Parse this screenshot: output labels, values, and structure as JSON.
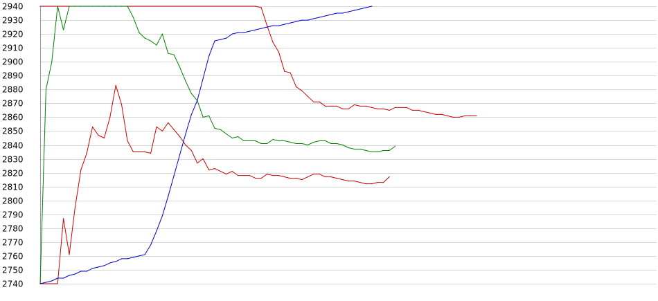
{
  "chart_data": {
    "type": "line",
    "title": "",
    "xlabel": "",
    "ylabel": "",
    "ylim": [
      2740,
      2940
    ],
    "grid": true,
    "yticks": [
      "2740",
      "2750",
      "2760",
      "2770",
      "2780",
      "2790",
      "2800",
      "2810",
      "2820",
      "2830",
      "2840",
      "2850",
      "2860",
      "2870",
      "2880",
      "2890",
      "2900",
      "2910",
      "2920",
      "2930",
      "2940"
    ],
    "x": [
      0,
      1,
      2,
      3,
      4,
      5,
      6,
      7,
      8,
      9,
      10,
      11,
      12,
      13,
      14,
      15,
      16,
      17,
      18,
      19,
      20,
      21,
      22,
      23,
      24,
      25,
      26,
      27,
      28,
      29,
      30,
      31,
      32,
      33,
      34,
      35,
      36,
      37,
      38,
      39,
      40,
      41,
      42,
      43,
      44,
      45,
      46,
      47,
      48,
      49,
      50,
      51,
      52,
      53,
      54,
      55,
      56,
      57,
      58,
      59,
      60,
      61,
      62,
      63,
      64,
      65,
      66,
      67,
      68,
      69,
      70,
      71,
      72,
      73,
      74,
      75,
      76,
      77,
      78,
      79,
      80,
      81,
      82,
      83,
      84,
      85,
      86,
      87,
      88,
      89,
      90,
      91,
      92,
      93,
      94,
      95,
      96,
      97,
      98,
      99,
      100,
      101,
      102,
      103,
      104,
      105
    ],
    "series": [
      {
        "color": "#cc0000",
        "values": [
          2940,
          2940,
          2940,
          2940,
          2940,
          2940,
          2940,
          2940,
          2940,
          2940,
          2940,
          2940,
          2940,
          2940,
          2940,
          2940,
          2940,
          2940,
          2940,
          2940,
          2940,
          2940,
          2940,
          2940,
          2940,
          2940,
          2940,
          2940,
          2940,
          2940,
          2940,
          2940,
          2940,
          2940,
          2940,
          2940,
          2940,
          2940,
          2939,
          2926,
          2914,
          2907,
          2893,
          2892,
          2882,
          2879,
          2875,
          2871,
          2871,
          2868,
          2868,
          2868,
          2866,
          2866,
          2869,
          2868,
          2868,
          2867,
          2866,
          2866,
          2865,
          2867,
          2867,
          2867,
          2865,
          2865,
          2864,
          2863,
          2862,
          2862,
          2861,
          2860,
          2860,
          2861,
          2861,
          2861,
          null,
          null,
          null,
          null,
          null,
          null,
          null,
          null,
          null,
          null,
          null,
          null,
          null,
          null,
          null,
          null,
          null,
          null,
          null,
          null,
          null,
          null,
          null,
          null,
          null,
          null,
          null,
          null,
          null,
          null
        ]
      },
      {
        "color": "#cc0000",
        "values": [
          2740,
          2740,
          2740,
          2740,
          2787,
          2761,
          2795,
          2822,
          2834,
          2853,
          2847,
          2845,
          2860,
          2883,
          2869,
          2843,
          2835,
          2835,
          2835,
          2834,
          2853,
          2850,
          2856,
          2851,
          2846,
          2840,
          2836,
          2827,
          2830,
          2822,
          2823,
          2821,
          2819,
          2821,
          2818,
          2818,
          2818,
          2816,
          2816,
          2819,
          2818,
          2818,
          2817,
          2816,
          2816,
          2815,
          2817,
          2819,
          2819,
          2817,
          2817,
          2816,
          2815,
          2814,
          2814,
          2813,
          2812,
          2812,
          2813,
          2813,
          2817,
          null,
          null,
          null,
          null,
          null,
          null,
          null,
          null,
          null,
          null,
          null,
          null,
          null,
          null,
          null,
          null,
          null,
          null,
          null,
          null,
          null,
          null,
          null,
          null,
          null,
          null,
          null,
          null,
          null,
          null,
          null,
          null,
          null,
          null,
          null,
          null,
          null,
          null,
          null,
          null,
          null,
          null,
          null,
          null,
          null
        ]
      },
      {
        "color": "#008000",
        "values": [
          2740,
          2880,
          2900,
          2940,
          2923,
          2940,
          2940,
          2940,
          2940,
          2940,
          2940,
          2940,
          2940,
          2940,
          2940,
          2940,
          2932,
          2921,
          2917,
          2915,
          2912,
          2920,
          2906,
          2905,
          2896,
          2886,
          2877,
          2872,
          2860,
          2861,
          2852,
          2851,
          2848,
          2845,
          2846,
          2843,
          2843,
          2843,
          2841,
          2841,
          2844,
          2843,
          2843,
          2842,
          2841,
          2841,
          2840,
          2842,
          2843,
          2843,
          2841,
          2841,
          2840,
          2838,
          2837,
          2837,
          2836,
          2835,
          2835,
          2836,
          2836,
          2839,
          null,
          null,
          null,
          null,
          null,
          null,
          null,
          null,
          null,
          null,
          null,
          null,
          null,
          null,
          null,
          null,
          null,
          null,
          null,
          null,
          null,
          null,
          null,
          null,
          null,
          null,
          null,
          null,
          null,
          null,
          null,
          null,
          null,
          null,
          null,
          null,
          null,
          null,
          null,
          null,
          null,
          null,
          null,
          null
        ]
      },
      {
        "color": "#0000cc",
        "values": [
          2740,
          2741,
          2742,
          2744,
          2744,
          2746,
          2747,
          2749,
          2749,
          2751,
          2752,
          2753,
          2755,
          2756,
          2758,
          2758,
          2759,
          2760,
          2761,
          2768,
          2778,
          2789,
          2803,
          2818,
          2833,
          2848,
          2862,
          2872,
          2888,
          2904,
          2915,
          2916,
          2917,
          2920,
          2921,
          2921,
          2922,
          2923,
          2924,
          2925,
          2926,
          2926,
          2927,
          2928,
          2929,
          2930,
          2930,
          2931,
          2932,
          2933,
          2934,
          2935,
          2935,
          2936,
          2937,
          2938,
          2939,
          2940,
          null,
          null,
          null,
          null,
          null,
          null,
          null,
          null,
          null,
          null,
          null,
          null,
          null,
          null,
          null,
          null,
          null,
          null,
          null,
          null,
          null,
          null,
          null,
          null,
          null,
          null,
          null,
          null,
          null,
          null,
          null,
          null,
          null,
          null,
          null,
          null,
          null,
          null,
          null,
          null,
          null,
          null,
          null,
          null,
          null,
          null,
          null,
          null
        ]
      }
    ]
  }
}
